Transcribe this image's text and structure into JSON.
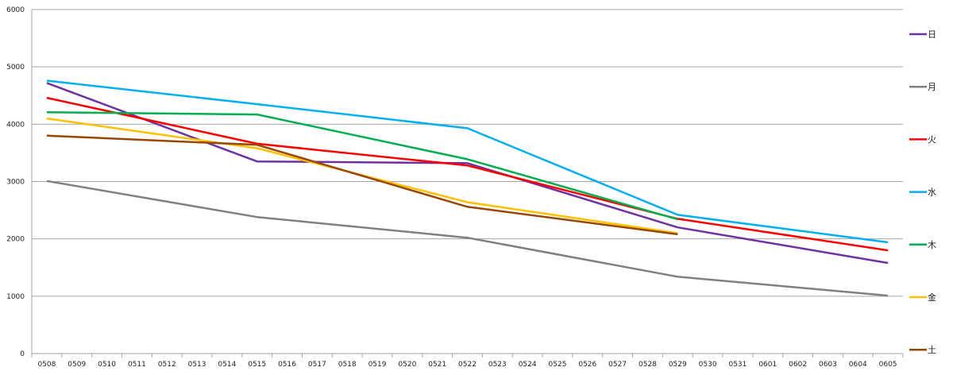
{
  "chart_data": {
    "type": "line",
    "title": "",
    "xlabel": "",
    "ylabel": "",
    "ylim": [
      0,
      6000
    ],
    "yticks": [
      0,
      1000,
      2000,
      3000,
      4000,
      5000,
      6000
    ],
    "grid": "horizontal",
    "legend_position": "right",
    "categories": [
      "0508",
      "0509",
      "0510",
      "0511",
      "0512",
      "0513",
      "0514",
      "0515",
      "0516",
      "0517",
      "0518",
      "0519",
      "0520",
      "0521",
      "0522",
      "0523",
      "0524",
      "0525",
      "0526",
      "0527",
      "0528",
      "0529",
      "0530",
      "0531",
      "0601",
      "0602",
      "0603",
      "0604",
      "0605"
    ],
    "series": [
      {
        "name": "日",
        "color": "#7030a0",
        "points": [
          [
            "0508",
            4720
          ],
          [
            "0515",
            3350
          ],
          [
            "0522",
            3320
          ],
          [
            "0529",
            2200
          ],
          [
            "0605",
            1580
          ]
        ]
      },
      {
        "name": "月",
        "color": "#808080",
        "points": [
          [
            "0508",
            3010
          ],
          [
            "0515",
            2380
          ],
          [
            "0522",
            2020
          ],
          [
            "0529",
            1340
          ],
          [
            "0605",
            1010
          ]
        ]
      },
      {
        "name": "火",
        "color": "#ff0000",
        "points": [
          [
            "0508",
            4460
          ],
          [
            "0515",
            3660
          ],
          [
            "0522",
            3280
          ],
          [
            "0529",
            2350
          ],
          [
            "0605",
            1800
          ]
        ]
      },
      {
        "name": "水",
        "color": "#00b0f0",
        "points": [
          [
            "0508",
            4760
          ],
          [
            "0515",
            4350
          ],
          [
            "0522",
            3930
          ],
          [
            "0529",
            2420
          ],
          [
            "0605",
            1940
          ]
        ]
      },
      {
        "name": "木",
        "color": "#00b050",
        "points": [
          [
            "0508",
            4210
          ],
          [
            "0515",
            4170
          ],
          [
            "0522",
            3390
          ],
          [
            "0529",
            2340
          ]
        ]
      },
      {
        "name": "金",
        "color": "#ffc000",
        "points": [
          [
            "0508",
            4100
          ],
          [
            "0515",
            3580
          ],
          [
            "0522",
            2640
          ],
          [
            "0529",
            2100
          ]
        ]
      },
      {
        "name": "土",
        "color": "#974706",
        "points": [
          [
            "0508",
            3800
          ],
          [
            "0515",
            3640
          ],
          [
            "0522",
            2560
          ],
          [
            "0529",
            2080
          ]
        ]
      }
    ]
  }
}
